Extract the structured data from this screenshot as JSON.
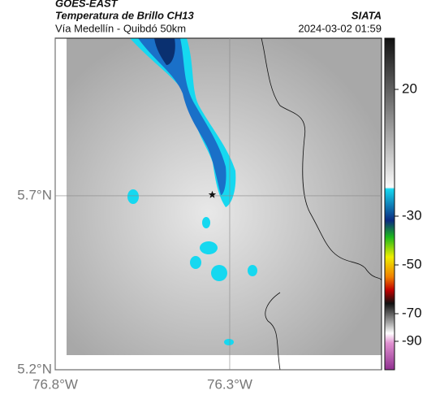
{
  "header": {
    "source": "GOES-EAST",
    "title": "Temperatura de Brillo CH13",
    "location": "Vía Medellín - Quibdó 50km",
    "org": "SIATA",
    "datetime": "2024-03-02 01:59"
  },
  "map": {
    "xlim": [
      -76.8,
      -75.865
    ],
    "ylim": [
      5.2,
      6.153
    ],
    "xticks": [
      {
        "value": -76.8,
        "label": "76.8°W"
      },
      {
        "value": -76.3,
        "label": "76.3°W"
      }
    ],
    "yticks": [
      {
        "value": 5.2,
        "label": "5.2°N"
      },
      {
        "value": 5.7,
        "label": "5.7°N"
      }
    ],
    "station": {
      "lon": -76.35,
      "lat": 5.703
    }
  },
  "colorbar": {
    "ticks": [
      20,
      -30,
      -50,
      -70,
      -90
    ]
  }
}
